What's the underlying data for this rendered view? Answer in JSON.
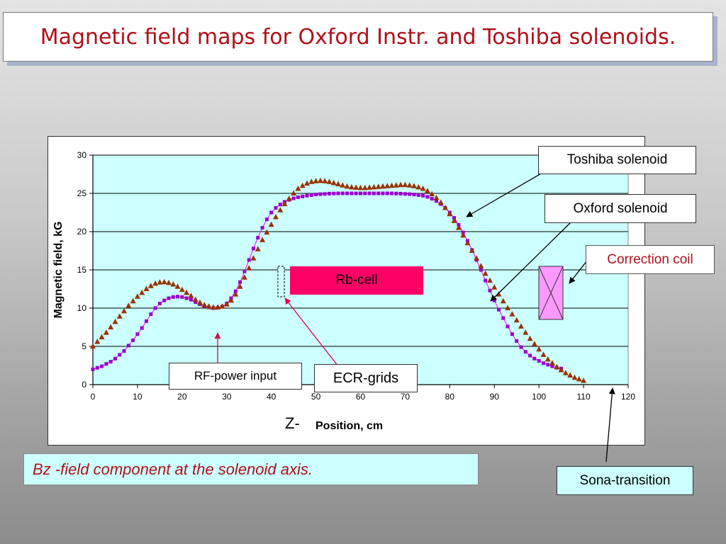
{
  "slide": {
    "title": "Magnetic field maps for Oxford Instr. and Toshiba solenoids.",
    "caption": "Bz -field component at the solenoid axis."
  },
  "annotations": {
    "toshiba": "Toshiba solenoid",
    "oxford": "Oxford solenoid",
    "correction_coil": "Correction coil",
    "rb_cell": "Rb-cell",
    "rf_power": "RF-power input",
    "ecr_grids": "ECR-grids",
    "sona": "Sona-transition",
    "z_prefix": "Z-"
  },
  "colors": {
    "plot_bg": "#ccffff",
    "oxford": "#9900cc",
    "oxford_line": "#ff00ff",
    "toshiba": "#993300",
    "accent_red": "#b0101a",
    "rb_cell": "#ff0066",
    "coil_fill": "#ff99ff"
  },
  "chart_data": {
    "type": "scatter",
    "xlabel": "Position, cm",
    "ylabel": "Magnetic field, kG",
    "xlim": [
      0,
      120
    ],
    "ylim": [
      0,
      30
    ],
    "xticks": [
      "0",
      "10",
      "20",
      "30",
      "40",
      "50",
      "60",
      "70",
      "80",
      "90",
      "100",
      "110",
      "120"
    ],
    "yticks": [
      "0",
      "5",
      "10",
      "15",
      "20",
      "25",
      "30"
    ],
    "grid": "horizontal",
    "series": [
      {
        "name": "Oxford solenoid",
        "marker": "square",
        "x": [
          0,
          1,
          2,
          3,
          4,
          5,
          6,
          7,
          8,
          9,
          10,
          11,
          12,
          13,
          14,
          15,
          16,
          17,
          18,
          19,
          20,
          21,
          22,
          23,
          24,
          25,
          26,
          27,
          28,
          29,
          30,
          31,
          32,
          33,
          34,
          35,
          36,
          37,
          38,
          39,
          40,
          41,
          42,
          43,
          44,
          45,
          46,
          47,
          48,
          49,
          50,
          51,
          52,
          53,
          54,
          55,
          56,
          57,
          58,
          59,
          60,
          61,
          62,
          63,
          64,
          65,
          66,
          67,
          68,
          69,
          70,
          71,
          72,
          73,
          74,
          75,
          76,
          77,
          78,
          79,
          80,
          81,
          82,
          83,
          84,
          85,
          86,
          87,
          88,
          89,
          90,
          91,
          92,
          93,
          94,
          95,
          96,
          97,
          98,
          99,
          100,
          101,
          102,
          103,
          104,
          105
        ],
        "y": [
          2.0,
          2.2,
          2.4,
          2.7,
          3.0,
          3.4,
          3.9,
          4.4,
          5.1,
          5.8,
          6.6,
          7.4,
          8.3,
          9.2,
          10.0,
          10.6,
          11.0,
          11.3,
          11.45,
          11.5,
          11.45,
          11.3,
          11.1,
          10.8,
          10.5,
          10.25,
          10.1,
          10.0,
          10.05,
          10.2,
          10.6,
          11.3,
          12.2,
          13.4,
          14.8,
          16.3,
          17.8,
          19.2,
          20.5,
          21.6,
          22.5,
          23.1,
          23.55,
          23.9,
          24.15,
          24.35,
          24.5,
          24.6,
          24.7,
          24.78,
          24.85,
          24.9,
          24.93,
          24.96,
          24.98,
          25.0,
          25.0,
          25.0,
          25.0,
          25.0,
          25.0,
          25.0,
          25.0,
          25.0,
          25.0,
          25.0,
          25.0,
          25.0,
          24.98,
          24.96,
          24.93,
          24.9,
          24.85,
          24.78,
          24.7,
          24.55,
          24.3,
          24.0,
          23.6,
          23.1,
          22.5,
          21.8,
          20.9,
          19.9,
          18.8,
          17.6,
          16.3,
          15.0,
          13.6,
          12.3,
          11.0,
          9.8,
          8.7,
          7.6,
          6.6,
          5.7,
          4.9,
          4.3,
          3.8,
          3.4,
          3.1,
          2.8,
          2.6,
          2.4,
          2.2,
          2.1
        ]
      },
      {
        "name": "Toshiba solenoid",
        "marker": "triangle",
        "x": [
          0,
          1,
          2,
          3,
          4,
          5,
          6,
          7,
          8,
          9,
          10,
          11,
          12,
          13,
          14,
          15,
          16,
          17,
          18,
          19,
          20,
          21,
          22,
          23,
          24,
          25,
          26,
          27,
          28,
          29,
          30,
          31,
          32,
          33,
          34,
          35,
          36,
          37,
          38,
          39,
          40,
          41,
          42,
          43,
          44,
          45,
          46,
          47,
          48,
          49,
          50,
          51,
          52,
          53,
          54,
          55,
          56,
          57,
          58,
          59,
          60,
          61,
          62,
          63,
          64,
          65,
          66,
          67,
          68,
          69,
          70,
          71,
          72,
          73,
          74,
          75,
          76,
          77,
          78,
          79,
          80,
          81,
          82,
          83,
          84,
          85,
          86,
          87,
          88,
          89,
          90,
          91,
          92,
          93,
          94,
          95,
          96,
          97,
          98,
          99,
          100,
          101,
          102,
          103,
          104,
          105,
          106,
          107,
          108,
          109,
          110
        ],
        "y": [
          5.0,
          5.6,
          6.2,
          6.8,
          7.5,
          8.2,
          8.9,
          9.6,
          10.3,
          10.9,
          11.5,
          12.0,
          12.5,
          12.9,
          13.2,
          13.35,
          13.4,
          13.3,
          13.1,
          12.8,
          12.4,
          12.0,
          11.6,
          11.1,
          10.7,
          10.4,
          10.2,
          10.1,
          10.1,
          10.2,
          10.5,
          11.0,
          11.8,
          12.8,
          14.0,
          15.2,
          16.5,
          17.7,
          18.9,
          19.9,
          20.9,
          21.9,
          22.8,
          23.6,
          24.3,
          25.0,
          25.6,
          26.0,
          26.3,
          26.5,
          26.6,
          26.65,
          26.6,
          26.5,
          26.35,
          26.2,
          26.05,
          25.9,
          25.8,
          25.75,
          25.7,
          25.7,
          25.75,
          25.8,
          25.85,
          25.9,
          25.95,
          26.0,
          26.05,
          26.1,
          26.1,
          26.05,
          25.95,
          25.8,
          25.6,
          25.3,
          24.9,
          24.4,
          23.8,
          23.1,
          22.3,
          21.4,
          20.5,
          19.5,
          18.5,
          17.5,
          16.5,
          15.5,
          14.5,
          13.6,
          12.7,
          11.8,
          10.9,
          10.0,
          9.2,
          8.4,
          7.6,
          6.8,
          6.0,
          5.3,
          4.6,
          3.9,
          3.3,
          2.8,
          2.3,
          1.9,
          1.5,
          1.2,
          0.9,
          0.7,
          0.5
        ]
      }
    ]
  }
}
